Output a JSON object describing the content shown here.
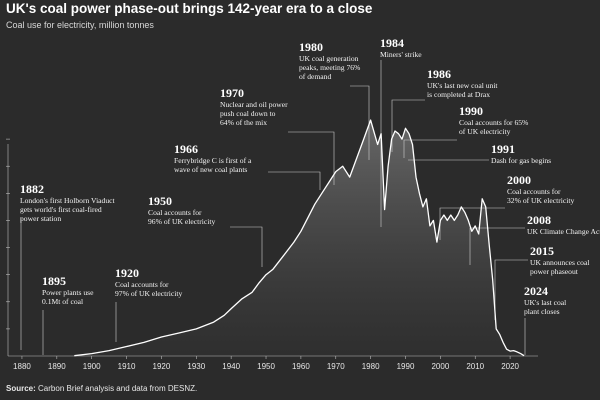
{
  "header": {
    "title": "UK's coal power phase-out brings 142-year era to a close",
    "subtitle": "Coal use for electricity, million tonnes"
  },
  "footer": {
    "source_label": "Source:",
    "source_text": "Carbon Brief analysis and data from DESNZ."
  },
  "colors": {
    "background": "#2b2b2b",
    "line": "#ffffff",
    "area": "#ffffff",
    "text": "#ffffff",
    "leader": "#cfcfcf"
  },
  "chart_data": {
    "type": "line",
    "title": "UK's coal power phase-out brings 142-year era to a close",
    "subtitle": "Coal use for electricity, million tonnes",
    "xlabel": "",
    "ylabel": "",
    "xlim": [
      1876,
      2028
    ],
    "ylim": [
      0,
      90
    ],
    "x_ticks": [
      1880,
      1890,
      1900,
      1910,
      1920,
      1930,
      1940,
      1950,
      1960,
      1970,
      1980,
      1990,
      2000,
      2010,
      2020
    ],
    "y_ticks": [
      10,
      20,
      30,
      40,
      50,
      60,
      70,
      80
    ],
    "series": [
      {
        "x": [
          1895,
          1900,
          1905,
          1910,
          1915,
          1920,
          1925,
          1930,
          1935,
          1938,
          1940,
          1943,
          1946,
          1948,
          1950,
          1952,
          1955,
          1958,
          1960,
          1962,
          1964,
          1966,
          1968,
          1970,
          1972,
          1974,
          1976,
          1978,
          1980,
          1982,
          1983,
          1984,
          1985,
          1986,
          1987,
          1988,
          1989,
          1990,
          1991,
          1992,
          1993,
          1994,
          1995,
          1996,
          1997,
          1998,
          1999,
          2000,
          2001,
          2002,
          2003,
          2004,
          2005,
          2006,
          2007,
          2008,
          2009,
          2010,
          2011,
          2012,
          2013,
          2014,
          2015,
          2016,
          2017,
          2018,
          2019,
          2020,
          2021,
          2022,
          2023,
          2024
        ],
        "values": [
          0.1,
          0.9,
          2,
          3.5,
          5,
          7,
          8.5,
          10,
          12.5,
          15,
          17.5,
          21,
          23.5,
          27,
          30,
          32,
          37,
          42,
          46,
          51,
          56,
          60,
          64,
          68,
          70,
          66,
          73,
          80,
          87,
          78,
          82,
          54,
          70,
          80,
          83,
          82,
          80,
          84,
          82,
          78,
          66,
          60,
          55,
          58,
          48,
          50,
          42,
          50,
          52,
          50,
          52,
          50,
          52,
          55,
          53,
          50,
          46,
          48,
          45,
          58,
          55,
          41,
          28,
          10,
          8,
          5,
          2.5,
          1.8,
          2,
          1.5,
          0.9,
          0.1
        ]
      }
    ],
    "annotations": [
      {
        "year": "1882",
        "text": [
          "London's first Holborn Viaduct",
          "gets world's first coal-fired",
          "power station"
        ]
      },
      {
        "year": "1895",
        "text": [
          "Power plants use",
          "0.1Mt of coal"
        ]
      },
      {
        "year": "1920",
        "text": [
          "Coal accounts for",
          "97% of UK electricity"
        ]
      },
      {
        "year": "1950",
        "text": [
          "Coal accounts for",
          "96% of UK electricity"
        ]
      },
      {
        "year": "1966",
        "text": [
          "Ferrybridge C is first of a",
          "wave of new coal plants"
        ]
      },
      {
        "year": "1970",
        "text": [
          "Nuclear and oil power",
          "push coal down to",
          "64% of the mix"
        ]
      },
      {
        "year": "1980",
        "text": [
          "UK coal generation",
          "peaks, meeting 76%",
          "of demand"
        ]
      },
      {
        "year": "1984",
        "text": [
          "Miners' strike"
        ]
      },
      {
        "year": "1986",
        "text": [
          "UK's last new coal unit",
          "is completed at Drax"
        ]
      },
      {
        "year": "1990",
        "text": [
          "Coal accounts for 65%",
          "of UK electricity"
        ]
      },
      {
        "year": "1991",
        "text": [
          "Dash for gas begins"
        ]
      },
      {
        "year": "2000",
        "text": [
          "Coal accounts for",
          "32% of UK electricity"
        ]
      },
      {
        "year": "2008",
        "text": [
          "UK Climate Change Act"
        ]
      },
      {
        "year": "2015",
        "text": [
          "UK announces coal",
          "power phaseout"
        ]
      },
      {
        "year": "2024",
        "text": [
          "UK's last coal",
          "plant closes"
        ]
      }
    ]
  }
}
